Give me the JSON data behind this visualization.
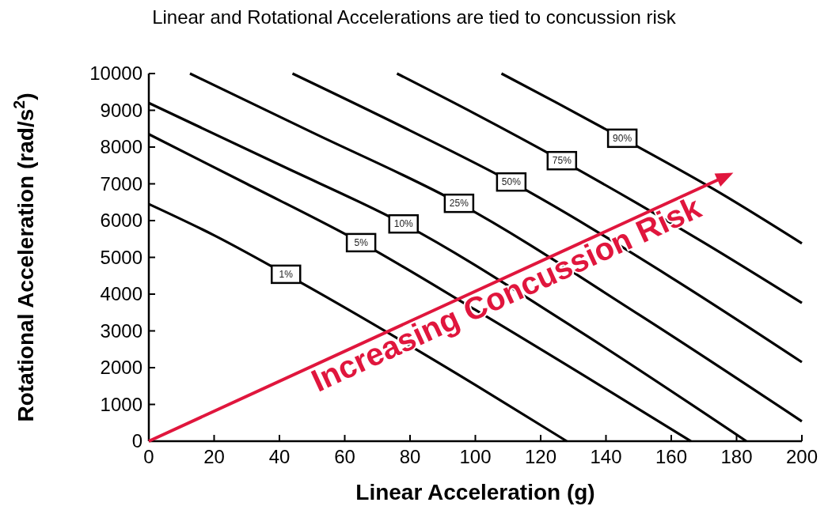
{
  "chart_data": {
    "type": "line",
    "title": "Linear and Rotational Accelerations are tied to concussion risk",
    "xlabel": "Linear Acceleration (g)",
    "ylabel": "Rotational Acceleration (rad/s$^{2}$)",
    "xlim": [
      0,
      200
    ],
    "ylim": [
      0,
      10000
    ],
    "xticks": [
      0,
      20,
      40,
      60,
      80,
      100,
      120,
      140,
      160,
      180,
      200
    ],
    "yticks": [
      0,
      1000,
      2000,
      3000,
      4000,
      5000,
      6000,
      7000,
      8000,
      9000,
      10000
    ],
    "marker": "none",
    "line_style": "solid",
    "annotations": [
      "Increasing Concussion Risk"
    ],
    "series": [
      {
        "name": "1%",
        "color": "#000000",
        "x": [
          0,
          20,
          42,
          100,
          128
        ],
        "values": [
          6450,
          5600,
          4540,
          1530,
          0
        ]
      },
      {
        "name": "5%",
        "color": "#000000",
        "x": [
          0,
          30,
          65,
          100,
          166
        ],
        "values": [
          8350,
          7000,
          5400,
          3570,
          0
        ]
      },
      {
        "name": "10%",
        "color": "#000000",
        "x": [
          0,
          40,
          78,
          130,
          183
        ],
        "values": [
          9200,
          7520,
          5910,
          3100,
          0
        ]
      },
      {
        "name": "25%",
        "color": "#000000",
        "x": [
          12.6,
          50,
          95,
          150,
          200
        ],
        "values": [
          10000,
          8400,
          6470,
          3450,
          540
        ]
      },
      {
        "name": "50%",
        "color": "#000000",
        "x": [
          44,
          80,
          111,
          160,
          200
        ],
        "values": [
          10000,
          8450,
          7050,
          4450,
          2150
        ]
      },
      {
        "name": "75%",
        "color": "#000000",
        "x": [
          76,
          100,
          126.5,
          170,
          200
        ],
        "values": [
          10000,
          8900,
          7630,
          5400,
          3760
        ]
      },
      {
        "name": "90%",
        "color": "#000000",
        "x": [
          108,
          125,
          145,
          175,
          200
        ],
        "values": [
          10000,
          9200,
          8240,
          6750,
          5380
        ]
      }
    ]
  }
}
